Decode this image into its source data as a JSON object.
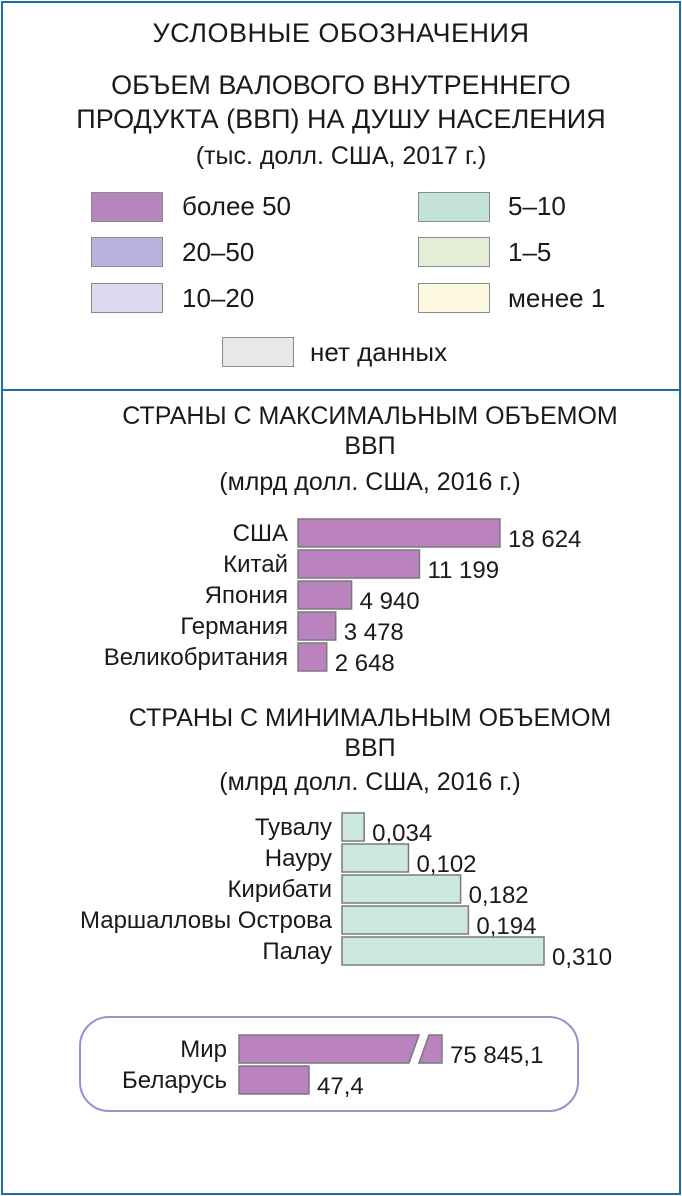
{
  "legend": {
    "title": "УСЛОВНЫЕ ОБОЗНАЧЕНИЯ",
    "subtitle": "ОБЪЕМ ВАЛОВОГО ВНУТРЕННЕГО ПРОДУКТА (ВВП) НА ДУШУ НАСЕЛЕНИЯ",
    "unit": "(тыс. долл. США, 2017 г.)",
    "items": [
      {
        "label": "более 50",
        "color": "#b785bd"
      },
      {
        "label": "20–50",
        "color": "#b8b2dc"
      },
      {
        "label": "10–20",
        "color": "#dcd8ee"
      },
      {
        "label": "5–10",
        "color": "#c2e2da"
      },
      {
        "label": "1–5",
        "color": "#e4eed6"
      },
      {
        "label": "менее 1",
        "color": "#fdf9e1"
      },
      {
        "label": "нет данных",
        "color": "#e8e8e8"
      }
    ]
  },
  "colors": {
    "frame": "#1f6fa3",
    "bar_max": "#bb82c0",
    "bar_min": "#cde8de",
    "world_box": "#9a90cc"
  },
  "chart_data": [
    {
      "type": "bar",
      "orientation": "horizontal",
      "title": "СТРАНЫ С МАКСИМАЛЬНЫМ ОБЪЕМОМ ВВП",
      "unit": "(млрд долл. США, 2016 г.)",
      "categories": [
        "США",
        "Китай",
        "Япония",
        "Германия",
        "Великобритания"
      ],
      "values": [
        18624,
        11199,
        4940,
        3478,
        2648
      ],
      "value_labels": [
        "18 624",
        "11 199",
        "4 940",
        "3 478",
        "2 648"
      ]
    },
    {
      "type": "bar",
      "orientation": "horizontal",
      "title": "СТРАНЫ С МИНИМАЛЬНЫМ ОБЪЕМОМ ВВП",
      "unit": "(млрд долл. США, 2016 г.)",
      "categories": [
        "Тувалу",
        "Науру",
        "Кирибати",
        "Маршалловы Острова",
        "Палау"
      ],
      "values": [
        0.034,
        0.102,
        0.182,
        0.194,
        0.31
      ],
      "value_labels": [
        "0,034",
        "0,102",
        "0,182",
        "0,194",
        "0,310"
      ]
    },
    {
      "type": "bar",
      "orientation": "horizontal",
      "categories": [
        "Мир",
        "Беларусь"
      ],
      "values": [
        75845.1,
        47.4
      ],
      "value_labels": [
        "75 845,1",
        "47,4"
      ],
      "broken_axis": true
    }
  ]
}
